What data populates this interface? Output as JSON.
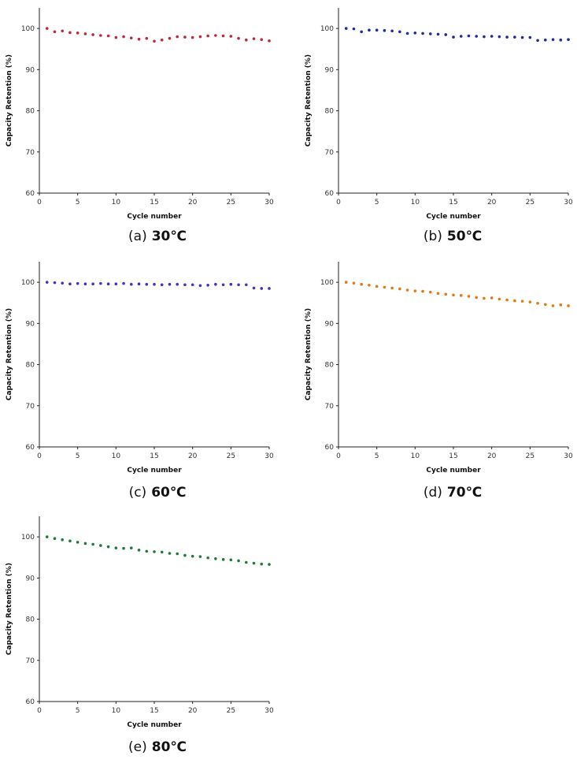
{
  "chart_data": [
    {
      "type": "scatter",
      "caption_letter": "(a)",
      "caption_temp": "30℃",
      "xlabel": "Cycle number",
      "ylabel": "Capacity Retention (%)",
      "xlim": [
        0,
        30
      ],
      "ylim": [
        60,
        105
      ],
      "xticks": [
        0,
        5,
        10,
        15,
        20,
        25,
        30
      ],
      "yticks": [
        60,
        70,
        80,
        90,
        100
      ],
      "color": "#c0283a",
      "series": [
        {
          "x": [
            1,
            2,
            3,
            4,
            5,
            6,
            7,
            8,
            9,
            10,
            11,
            12,
            13,
            14,
            15,
            16,
            17,
            18,
            19,
            20,
            21,
            22,
            23,
            24,
            25,
            26,
            27,
            28,
            29,
            30
          ],
          "values": [
            100,
            99.2,
            99.4,
            99.0,
            98.9,
            98.7,
            98.5,
            98.3,
            98.2,
            97.8,
            98.0,
            97.7,
            97.4,
            97.6,
            96.9,
            97.2,
            97.6,
            98.0,
            97.9,
            97.8,
            98.0,
            98.2,
            98.3,
            98.2,
            98.1,
            97.6,
            97.2,
            97.5,
            97.3,
            97.0
          ]
        }
      ]
    },
    {
      "type": "scatter",
      "caption_letter": "(b)",
      "caption_temp": "50℃",
      "xlabel": "Cycle number",
      "ylabel": "Capacity Retention (%)",
      "xlim": [
        0,
        30
      ],
      "ylim": [
        60,
        105
      ],
      "xticks": [
        0,
        5,
        10,
        15,
        20,
        25,
        30
      ],
      "yticks": [
        60,
        70,
        80,
        90,
        100
      ],
      "color": "#1f2d9a",
      "series": [
        {
          "x": [
            1,
            2,
            3,
            4,
            5,
            6,
            7,
            8,
            9,
            10,
            11,
            12,
            13,
            14,
            15,
            16,
            17,
            18,
            19,
            20,
            21,
            22,
            23,
            24,
            25,
            26,
            27,
            28,
            29,
            30
          ],
          "values": [
            100,
            99.9,
            99.2,
            99.6,
            99.6,
            99.5,
            99.4,
            99.2,
            98.8,
            98.9,
            98.8,
            98.7,
            98.6,
            98.5,
            97.9,
            98.1,
            98.2,
            98.1,
            98.0,
            98.1,
            98.0,
            97.9,
            97.9,
            97.8,
            97.8,
            97.1,
            97.2,
            97.3,
            97.2,
            97.3
          ]
        }
      ]
    },
    {
      "type": "scatter",
      "caption_letter": "(c)",
      "caption_temp": "60℃",
      "xlabel": "Cycle number",
      "ylabel": "Capacity Retention (%)",
      "xlim": [
        0,
        30
      ],
      "ylim": [
        60,
        105
      ],
      "xticks": [
        0,
        5,
        10,
        15,
        20,
        25,
        30
      ],
      "yticks": [
        60,
        70,
        80,
        90,
        100
      ],
      "color": "#4b2fb8",
      "series": [
        {
          "x": [
            1,
            2,
            3,
            4,
            5,
            6,
            7,
            8,
            9,
            10,
            11,
            12,
            13,
            14,
            15,
            16,
            17,
            18,
            19,
            20,
            21,
            22,
            23,
            24,
            25,
            26,
            27,
            28,
            29,
            30
          ],
          "values": [
            100,
            99.9,
            99.8,
            99.6,
            99.7,
            99.6,
            99.6,
            99.7,
            99.6,
            99.6,
            99.7,
            99.5,
            99.6,
            99.5,
            99.5,
            99.4,
            99.5,
            99.5,
            99.4,
            99.4,
            99.2,
            99.3,
            99.5,
            99.4,
            99.5,
            99.4,
            99.4,
            98.6,
            98.5,
            98.5
          ]
        }
      ]
    },
    {
      "type": "scatter",
      "caption_letter": "(d)",
      "caption_temp": "70℃",
      "xlabel": "Cycle number",
      "ylabel": "Capacity Retention (%)",
      "xlim": [
        0,
        30
      ],
      "ylim": [
        60,
        105
      ],
      "xticks": [
        0,
        5,
        10,
        15,
        20,
        25,
        30
      ],
      "yticks": [
        60,
        70,
        80,
        90,
        100
      ],
      "color": "#e07a12",
      "series": [
        {
          "x": [
            1,
            2,
            3,
            4,
            5,
            6,
            7,
            8,
            9,
            10,
            11,
            12,
            13,
            14,
            15,
            16,
            17,
            18,
            19,
            20,
            21,
            22,
            23,
            24,
            25,
            26,
            27,
            28,
            29,
            30
          ],
          "values": [
            100,
            99.8,
            99.5,
            99.3,
            99.0,
            98.8,
            98.6,
            98.4,
            98.1,
            97.9,
            97.8,
            97.6,
            97.3,
            97.1,
            96.9,
            96.8,
            96.6,
            96.3,
            96.1,
            96.2,
            95.9,
            95.7,
            95.5,
            95.4,
            95.2,
            94.9,
            94.6,
            94.3,
            94.5,
            94.3
          ]
        }
      ]
    },
    {
      "type": "scatter",
      "caption_letter": "(e)",
      "caption_temp": "80℃",
      "xlabel": "Cycle number",
      "ylabel": "Capacity Retention (%)",
      "xlim": [
        0,
        30
      ],
      "ylim": [
        60,
        105
      ],
      "xticks": [
        0,
        5,
        10,
        15,
        20,
        25,
        30
      ],
      "yticks": [
        60,
        70,
        80,
        90,
        100
      ],
      "color": "#1f7a3a",
      "series": [
        {
          "x": [
            1,
            2,
            3,
            4,
            5,
            6,
            7,
            8,
            9,
            10,
            11,
            12,
            13,
            14,
            15,
            16,
            17,
            18,
            19,
            20,
            21,
            22,
            23,
            24,
            25,
            26,
            27,
            28,
            29,
            30
          ],
          "values": [
            100,
            99.6,
            99.3,
            99.0,
            98.7,
            98.4,
            98.2,
            97.9,
            97.6,
            97.3,
            97.2,
            97.3,
            96.8,
            96.5,
            96.4,
            96.3,
            96.0,
            95.9,
            95.5,
            95.3,
            95.2,
            94.9,
            94.7,
            94.5,
            94.4,
            94.2,
            93.8,
            93.6,
            93.4,
            93.3
          ]
        }
      ]
    }
  ]
}
